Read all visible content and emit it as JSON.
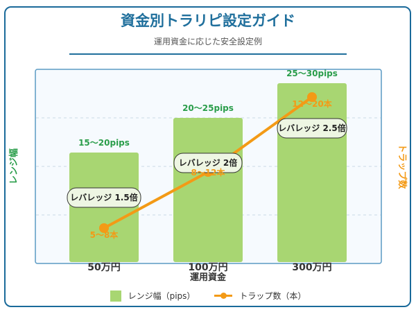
{
  "header": {
    "title": "資金別トラリピ設定ガイド",
    "subtitle": "運用資金に応じた安全設定例"
  },
  "chart_data": {
    "type": "bar",
    "categories": [
      "50万円",
      "100万円",
      "300万円"
    ],
    "xlabel": "運用資金",
    "ylabel_left": "レンジ幅",
    "ylabel_right": "トラップ数",
    "series": [
      {
        "name": "レンジ幅（pips）",
        "kind": "bar",
        "labels": [
          "15〜20pips",
          "20〜25pips",
          "25〜30pips"
        ]
      },
      {
        "name": "トラップ数（本）",
        "kind": "line",
        "labels": [
          "5〜8本",
          "8〜12本",
          "12〜20本"
        ]
      }
    ],
    "annotations": [
      "レバレッジ 1.5倍",
      "レバレッジ 2倍",
      "レバレッジ 2.5倍"
    ],
    "grid": true,
    "legend_position": "bottom",
    "colors": {
      "bar": "#a8d672",
      "bar_label": "#2a9d4a",
      "line": "#f39a16",
      "title": "#1f6f9c",
      "frame": "#5a9ac4",
      "plot_bg": "#f6fafe"
    }
  }
}
